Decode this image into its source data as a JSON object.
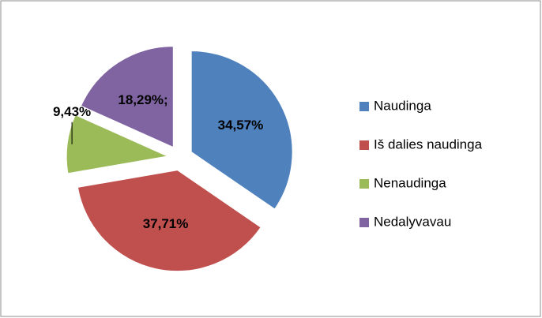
{
  "chart_data": {
    "type": "pie",
    "categories": [
      "Naudinga",
      "Iš dalies naudinga",
      "Nenaudinga",
      "Nedalyvavau"
    ],
    "values": [
      34.57,
      37.71,
      9.43,
      18.29
    ],
    "value_labels": [
      "34,57%",
      "37,71%",
      "9,43%",
      "18,29%;"
    ],
    "colors": [
      "#4f81bd",
      "#c0504d",
      "#9bbb59",
      "#8064a2"
    ],
    "exploded": true,
    "legend": "right"
  }
}
